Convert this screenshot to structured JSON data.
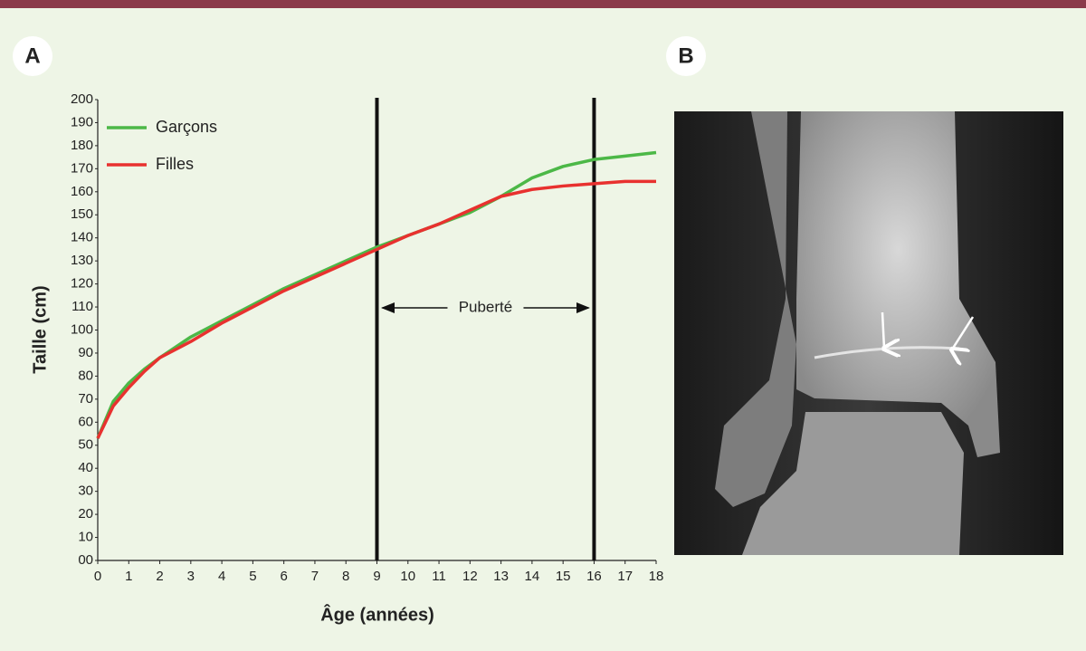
{
  "chart_data": {
    "type": "line",
    "panel_labels": [
      "A",
      "B"
    ],
    "ylabel": "Taille (cm)",
    "xlabel": "Âge (années)",
    "x": [
      0,
      0.5,
      1,
      1.5,
      2,
      3,
      4,
      5,
      6,
      7,
      8,
      9,
      10,
      11,
      12,
      13,
      14,
      15,
      16,
      17,
      18
    ],
    "series": [
      {
        "name": "Garçons",
        "color": "#4cb847",
        "values": [
          53,
          69,
          77,
          83,
          88,
          97,
          104,
          111,
          118,
          124,
          130,
          136,
          141,
          146,
          151,
          158,
          166,
          171,
          174,
          175.5,
          177
        ]
      },
      {
        "name": "Filles",
        "color": "#e8312f",
        "values": [
          53,
          67,
          75,
          82,
          88,
          95,
          103,
          110,
          117,
          123,
          129,
          135,
          141,
          146,
          152,
          158,
          161,
          162.5,
          163.5,
          164.5,
          164.5
        ]
      }
    ],
    "xlim": [
      0,
      18
    ],
    "xticks": [
      0,
      1,
      2,
      3,
      4,
      5,
      6,
      7,
      8,
      9,
      10,
      11,
      12,
      13,
      14,
      15,
      16,
      17,
      18
    ],
    "ylim": [
      0,
      200
    ],
    "yticks": [
      {
        "value": 0,
        "label": "00"
      },
      10,
      20,
      30,
      40,
      50,
      60,
      70,
      80,
      90,
      100,
      110,
      120,
      130,
      140,
      150,
      160,
      170,
      180,
      190,
      200
    ],
    "reference_lines": [
      9,
      16
    ],
    "annotation": "Puberté",
    "legend": "upper left",
    "grid": false
  }
}
